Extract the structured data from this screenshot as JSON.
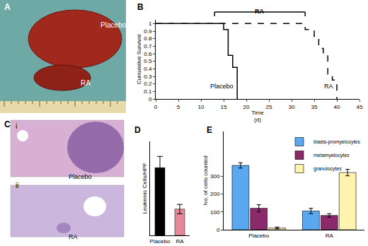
{
  "figure": {
    "panels": [
      {
        "panel": "A",
        "texts": [
          "Placebo",
          "RA"
        ]
      },
      {
        "panel": "C",
        "images": [
          {
            "label": "i",
            "caption": "Placebo"
          },
          {
            "label": "ii",
            "caption": "RA"
          }
        ]
      }
    ]
  },
  "chart_data": [
    {
      "panel": "B",
      "type": "step",
      "ylabel": "Cumulative Survival",
      "xlabel": "Time",
      "xunit": "(d)",
      "xlim": [
        0,
        45
      ],
      "xticks": [
        0,
        5,
        10,
        15,
        20,
        25,
        30,
        35,
        40,
        45
      ],
      "ylim": [
        0,
        1.05
      ],
      "yticks": [
        0,
        0.1,
        0.2,
        0.3,
        0.4,
        0.5,
        0.6,
        0.7,
        0.8,
        0.9,
        1
      ],
      "grid": false,
      "bracket": {
        "label": "RA",
        "x": [
          13,
          33
        ]
      },
      "series": [
        {
          "name": "Placebo",
          "color": "#000000",
          "line_style": "solid",
          "x": [
            0,
            15,
            16,
            17,
            18
          ],
          "values": [
            1,
            0.92,
            0.58,
            0.42,
            0
          ]
        },
        {
          "name": "RA",
          "color": "#000000",
          "line_style": "dash",
          "x": [
            0,
            33,
            35,
            36,
            37,
            38,
            39,
            40
          ],
          "values": [
            1,
            0.92,
            0.83,
            0.67,
            0.58,
            0.33,
            0.25,
            0
          ]
        }
      ]
    },
    {
      "panel": "D",
      "type": "bar",
      "ylabel": "Leukemic Cells/HPF",
      "categories": [
        "Placebo",
        "RA"
      ],
      "values": [
        72,
        28
      ],
      "errors": [
        12,
        5
      ],
      "colors": [
        "#000000",
        "#e4899a"
      ],
      "ylim": [
        0,
        100
      ],
      "grid": false,
      "tick_labels": "x"
    },
    {
      "panel": "E",
      "type": "bar",
      "ylabel": "No. of cells counted",
      "categories": [
        "Placebo",
        "RA"
      ],
      "ylim": [
        0,
        550
      ],
      "yticks": [
        0,
        100,
        200,
        300
      ],
      "grid": false,
      "legend": "top right",
      "series": [
        {
          "name": "blasts-promyelocytes",
          "color": "#5aa8f0",
          "values": [
            360,
            105
          ],
          "errors": [
            15,
            15
          ]
        },
        {
          "name": "metamyelocytes",
          "color": "#8a2a6a",
          "values": [
            120,
            80
          ],
          "errors": [
            20,
            10
          ]
        },
        {
          "name": "granulocytes",
          "color": "#fff3b0",
          "values": [
            10,
            320
          ],
          "errors": [
            5,
            18
          ]
        }
      ]
    }
  ]
}
